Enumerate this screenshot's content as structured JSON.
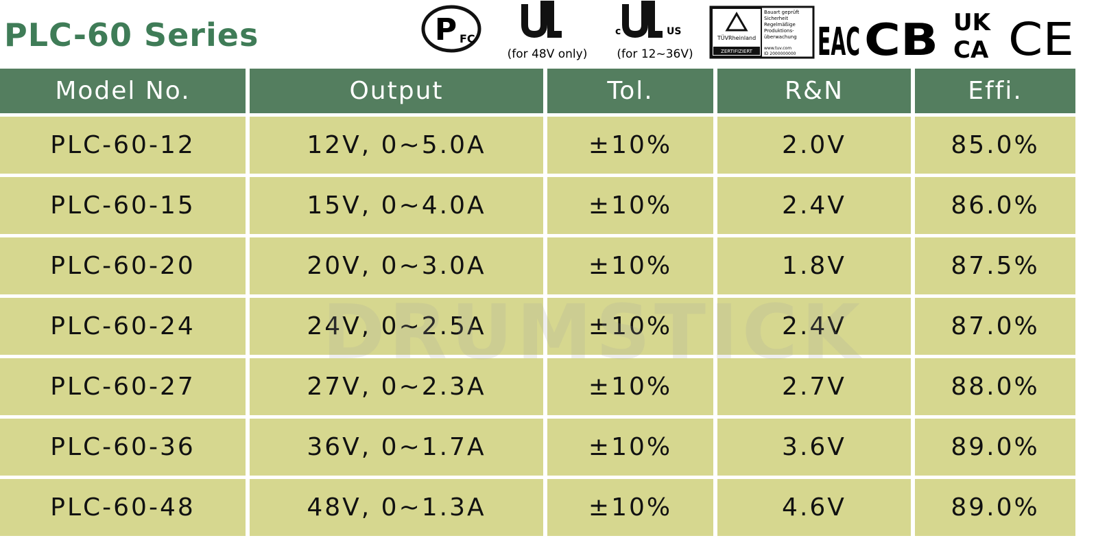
{
  "header": {
    "title": "PLC-60 Series",
    "certifications": {
      "pfc": {
        "p": "P",
        "fc": "FC"
      },
      "ul_note": "(for 48V only)",
      "cul": {
        "c": "c",
        "us": "US"
      },
      "cul_note": "(for 12~36V)",
      "tuv": {
        "brand": "TÜVRheinland",
        "cert": "ZERTIFIZIERT",
        "lines": [
          "Bauart geprüft",
          "Sicherheit",
          "Regelmäßige",
          "Produktions-",
          "überwachung"
        ],
        "url": "www.tuv.com",
        "id": "ID 2000000000"
      },
      "eac": "EAC",
      "cb": "CB",
      "ukca": [
        "UK",
        "CA"
      ],
      "ce": "CE"
    }
  },
  "watermark": "DRUMSTICK",
  "table": {
    "columns": [
      "Model No.",
      "Output",
      "Tol.",
      "R&N",
      "Effi."
    ],
    "rows": [
      [
        "PLC-60-12",
        "12V, 0~5.0A",
        "±10%",
        "2.0V",
        "85.0%"
      ],
      [
        "PLC-60-15",
        "15V, 0~4.0A",
        "±10%",
        "2.4V",
        "86.0%"
      ],
      [
        "PLC-60-20",
        "20V, 0~3.0A",
        "±10%",
        "1.8V",
        "87.5%"
      ],
      [
        "PLC-60-24",
        "24V, 0~2.5A",
        "±10%",
        "2.4V",
        "87.0%"
      ],
      [
        "PLC-60-27",
        "27V, 0~2.3A",
        "±10%",
        "2.7V",
        "88.0%"
      ],
      [
        "PLC-60-36",
        "36V, 0~1.7A",
        "±10%",
        "3.6V",
        "89.0%"
      ],
      [
        "PLC-60-48",
        "48V, 0~1.3A",
        "±10%",
        "4.6V",
        "89.0%"
      ]
    ]
  }
}
